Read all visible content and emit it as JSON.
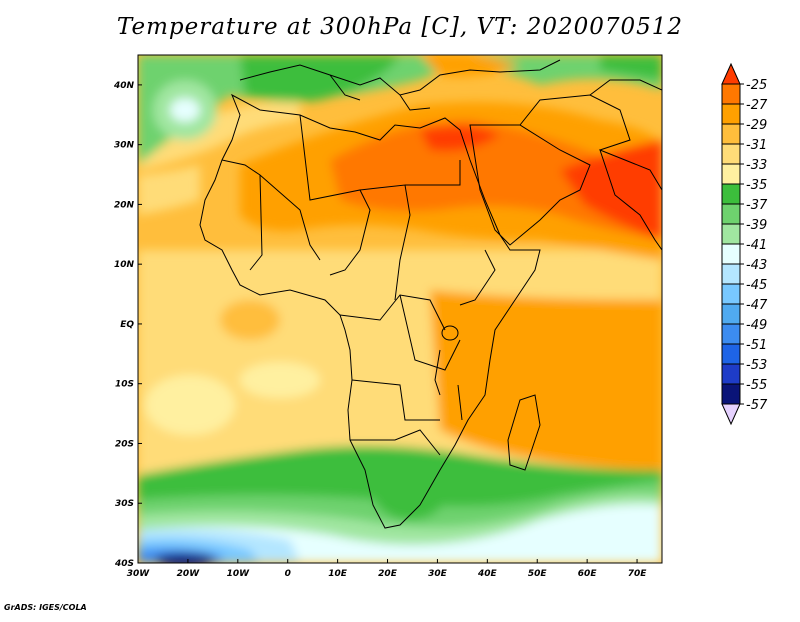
{
  "title": "Temperature at 300hPa [C], VT: 2020070512",
  "credit": "GrADS: IGES/COLA",
  "map": {
    "region": "Africa and Middle East",
    "lon_range": [
      -30,
      75
    ],
    "lat_range": [
      -40,
      45
    ],
    "x_ticks": [
      "30W",
      "20W",
      "10W",
      "0",
      "10E",
      "20E",
      "30E",
      "40E",
      "50E",
      "60E",
      "70E"
    ],
    "y_ticks": [
      "40N",
      "30N",
      "20N",
      "10N",
      "EQ",
      "10S",
      "20S",
      "30S",
      "40S"
    ]
  },
  "colorbar": {
    "labels": [
      "-25",
      "-27",
      "-29",
      "-31",
      "-33",
      "-35",
      "-37",
      "-39",
      "-41",
      "-43",
      "-45",
      "-47",
      "-49",
      "-51",
      "-53",
      "-55",
      "-57"
    ],
    "colors": [
      "#ff3c00",
      "#ff7800",
      "#ffa000",
      "#ffbe3c",
      "#ffdc78",
      "#fff0a0",
      "#3cbe3c",
      "#6ed26e",
      "#a0e6a0",
      "#e6ffff",
      "#b4e6ff",
      "#78c8ff",
      "#50aaf0",
      "#3c8cf0",
      "#1e64e6",
      "#1e3cc8",
      "#0a1478",
      "#e6d2ff"
    ]
  }
}
